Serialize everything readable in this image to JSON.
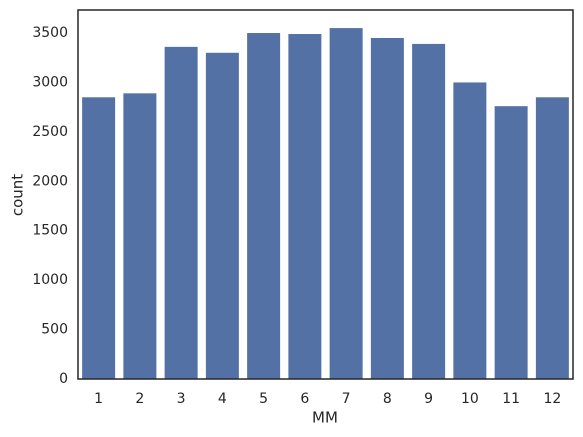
{
  "chart_data": {
    "type": "bar",
    "categories": [
      "1",
      "2",
      "3",
      "4",
      "5",
      "6",
      "7",
      "8",
      "9",
      "10",
      "11",
      "12"
    ],
    "values": [
      2850,
      2890,
      3360,
      3300,
      3500,
      3490,
      3550,
      3450,
      3390,
      3000,
      2760,
      2850
    ],
    "color": "#5471a5",
    "xlabel": "MM",
    "ylabel": "count",
    "ylim": [
      0,
      3733
    ],
    "yticks": [
      0,
      500,
      1000,
      1500,
      2000,
      2500,
      3000,
      3500
    ],
    "grid": false
  }
}
